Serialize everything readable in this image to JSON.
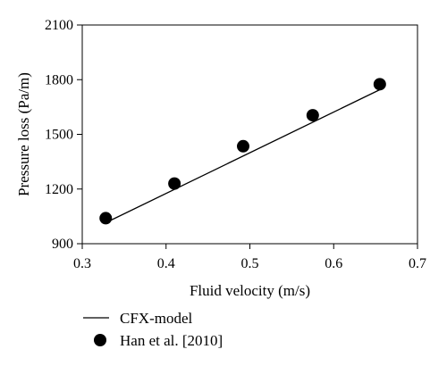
{
  "chart_data": {
    "type": "scatter",
    "xlabel": "Fluid velocity (m/s)",
    "ylabel": "Pressure loss (Pa/m)",
    "xlim": [
      0.3,
      0.7
    ],
    "ylim": [
      900,
      2100
    ],
    "xticks": [
      "0.3",
      "0.4",
      "0.5",
      "0.6",
      "0.7"
    ],
    "yticks": [
      "900",
      "1200",
      "1500",
      "1800",
      "2100"
    ],
    "grid": false,
    "legend_placement": "bottom-left, outside plot",
    "series": [
      {
        "name": "CFX-model",
        "type": "line",
        "color": "#000000",
        "x": [
          0.328,
          0.655
        ],
        "y": [
          1015,
          1745
        ]
      },
      {
        "name": "Han et al. [2010]",
        "type": "scatter",
        "marker": "filled-circle",
        "color": "#000000",
        "x": [
          0.328,
          0.41,
          0.492,
          0.575,
          0.655
        ],
        "y": [
          1040,
          1230,
          1435,
          1605,
          1775
        ]
      }
    ]
  }
}
